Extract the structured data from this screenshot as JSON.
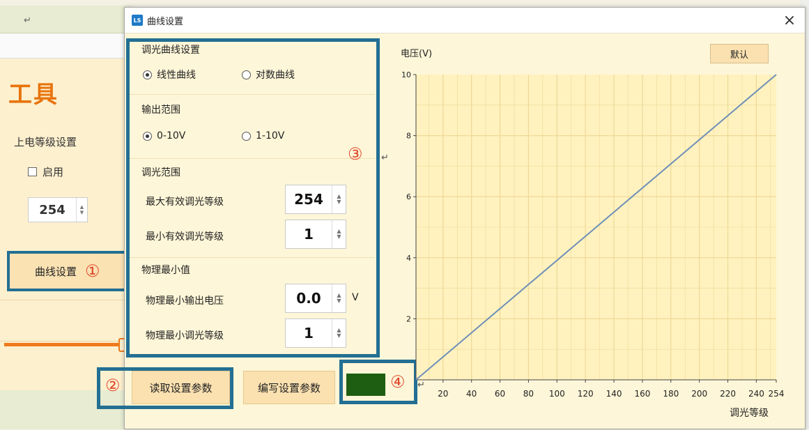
{
  "background_app": {
    "heading": "工具",
    "power_level_label": "上电等级设置",
    "enable_label": "启用",
    "power_level_value": "254",
    "curve_button_label": "曲线设置",
    "return_mark": "↵"
  },
  "dialog": {
    "title": "曲线设置",
    "close_glyph": "×",
    "icon_text": "LS"
  },
  "settings": {
    "curve_group_title": "调光曲线设置",
    "curve_options": [
      {
        "label": "线性曲线",
        "selected": true
      },
      {
        "label": "对数曲线",
        "selected": false
      }
    ],
    "output_group_title": "输出范围",
    "output_options": [
      {
        "label": "0-10V",
        "selected": true
      },
      {
        "label": "1-10V",
        "selected": false
      }
    ],
    "range_group_title": "调光范围",
    "max_level_label": "最大有效调光等级",
    "max_level_value": "254",
    "min_level_label": "最小有效调光等级",
    "min_level_value": "1",
    "physical_group_title": "物理最小值",
    "min_voltage_label": "物理最小输出电压",
    "min_voltage_value": "0.0",
    "min_voltage_unit": "V",
    "physical_min_level_label": "物理最小调光等级",
    "physical_min_level_value": "1"
  },
  "buttons": {
    "read": "读取设置参数",
    "write": "编写设置参数",
    "default": "默认"
  },
  "annotations": {
    "curve_button": "①",
    "read_button": "②",
    "settings_panel": "③",
    "status_indicator": "④"
  },
  "colors": {
    "annotation_frame": "#236f93",
    "annotation_number": "#e0462a",
    "status_indicator": "#1d5e12",
    "chart_line": "#6f8fb8",
    "chart_bg": "#fff2bf",
    "grid": "#efd895"
  },
  "chart_data": {
    "type": "line",
    "ylabel": "电压(V)",
    "xlabel": "调光等级",
    "xlim": [
      1,
      254
    ],
    "ylim": [
      0,
      10
    ],
    "x_ticks": [
      20,
      40,
      60,
      80,
      100,
      120,
      140,
      160,
      180,
      200,
      220,
      240,
      254
    ],
    "y_ticks": [
      2,
      4,
      6,
      8,
      10
    ],
    "grid": true,
    "series": [
      {
        "x": [
          1,
          254
        ],
        "y": [
          0,
          10
        ]
      }
    ]
  }
}
